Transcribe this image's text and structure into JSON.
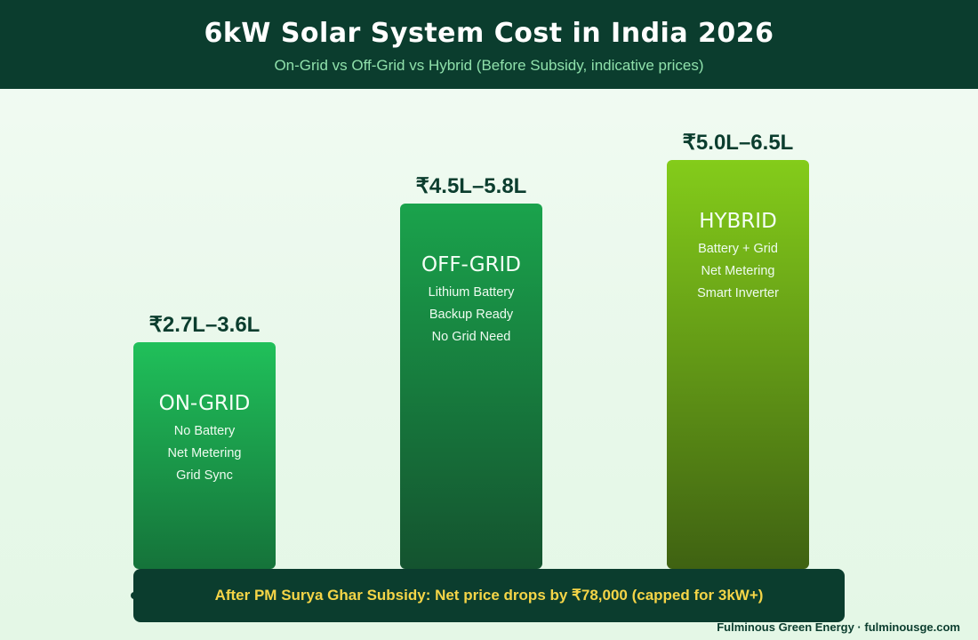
{
  "header": {
    "title": "6kW Solar System Cost in India 2026",
    "subtitle": "On-Grid vs Off-Grid vs Hybrid (Before Subsidy, indicative prices)"
  },
  "chart_data": {
    "type": "bar",
    "title": "6kW Solar System Cost in India 2026",
    "subtitle": "On-Grid vs Off-Grid vs Hybrid (Before Subsidy, indicative prices)",
    "categories": [
      "ON-GRID",
      "OFF-GRID",
      "HYBRID"
    ],
    "value_labels": [
      "₹2.7L–3.6L",
      "₹4.5L–5.8L",
      "₹5.0L–6.5L"
    ],
    "ranges_lakh": [
      [
        2.7,
        3.6
      ],
      [
        4.5,
        5.8
      ],
      [
        5.0,
        6.5
      ]
    ],
    "values": [
      3.6,
      5.8,
      6.5
    ],
    "features": [
      [
        "No Battery",
        "Net Metering",
        "Grid Sync"
      ],
      [
        "Lithium Battery",
        "Backup Ready",
        "No Grid Need"
      ],
      [
        "Battery + Grid",
        "Net Metering",
        "Smart Inverter"
      ]
    ],
    "colors": [
      "#20c05a",
      "#1aa34c",
      "#84cc1a"
    ],
    "grid": false,
    "legend": "none",
    "xlabel": "",
    "ylabel": ""
  },
  "banner": {
    "text": "After PM Surya Ghar Subsidy: Net price drops by ₹78,000 (capped for 3kW+)"
  },
  "footer": {
    "credit": "Fulminous Green Energy · fulminousge.com"
  }
}
